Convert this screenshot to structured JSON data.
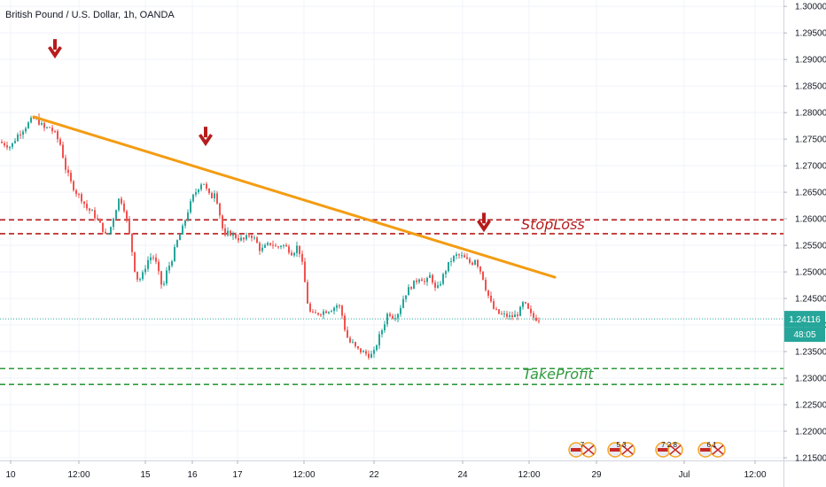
{
  "header": {
    "title": "British Pound / U.S. Dollar, 1h, OANDA"
  },
  "chart_data": {
    "type": "candlestick",
    "title": "British Pound / U.S. Dollar, 1h, OANDA",
    "ylim": [
      1.2145,
      1.3012
    ],
    "y_ticks": [
      "1.30000",
      "1.29500",
      "1.29000",
      "1.28500",
      "1.28000",
      "1.27500",
      "1.27000",
      "1.26500",
      "1.26000",
      "1.25500",
      "1.25000",
      "1.24500",
      "1.24000",
      "1.23500",
      "1.23000",
      "1.22500",
      "1.22000",
      "1.21500"
    ],
    "x_ticks": [
      "10",
      "12:00",
      "15",
      "16",
      "17",
      "12:00",
      "22",
      "24",
      "12:00",
      "29",
      "Jul",
      "12:00"
    ],
    "last_price": "1.24116",
    "countdown": "48:05",
    "price_path": [
      [
        0,
        1.2745
      ],
      [
        9,
        1.274
      ],
      [
        14,
        1.2735
      ],
      [
        22,
        1.2758
      ],
      [
        30,
        1.2772
      ],
      [
        37,
        1.2785
      ],
      [
        42,
        1.279
      ],
      [
        47,
        1.278
      ],
      [
        52,
        1.277
      ],
      [
        58,
        1.2772
      ],
      [
        64,
        1.276
      ],
      [
        70,
        1.274
      ],
      [
        76,
        1.2695
      ],
      [
        82,
        1.2668
      ],
      [
        88,
        1.265
      ],
      [
        94,
        1.2638
      ],
      [
        100,
        1.262
      ],
      [
        106,
        1.2612
      ],
      [
        112,
        1.2598
      ],
      [
        118,
        1.258
      ],
      [
        122,
        1.2565
      ],
      [
        127,
        1.2585
      ],
      [
        132,
        1.2615
      ],
      [
        137,
        1.2642
      ],
      [
        142,
        1.262
      ],
      [
        146,
        1.259
      ],
      [
        150,
        1.255
      ],
      [
        154,
        1.2505
      ],
      [
        158,
        1.2482
      ],
      [
        163,
        1.2495
      ],
      [
        168,
        1.252
      ],
      [
        174,
        1.2532
      ],
      [
        179,
        1.2512
      ],
      [
        183,
        1.248
      ],
      [
        186,
        1.247
      ],
      [
        190,
        1.25
      ],
      [
        196,
        1.2525
      ],
      [
        202,
        1.2558
      ],
      [
        208,
        1.2582
      ],
      [
        214,
        1.2615
      ],
      [
        220,
        1.2642
      ],
      [
        226,
        1.266
      ],
      [
        231,
        1.2672
      ],
      [
        236,
        1.265
      ],
      [
        240,
        1.2638
      ],
      [
        244,
        1.2652
      ],
      [
        248,
        1.2628
      ],
      [
        252,
        1.2588
      ],
      [
        256,
        1.2565
      ],
      [
        260,
        1.2575
      ],
      [
        266,
        1.2568
      ],
      [
        272,
        1.2562
      ],
      [
        278,
        1.256
      ],
      [
        284,
        1.2572
      ],
      [
        290,
        1.256
      ],
      [
        296,
        1.254
      ],
      [
        302,
        1.2548
      ],
      [
        308,
        1.2555
      ],
      [
        314,
        1.2545
      ],
      [
        320,
        1.2552
      ],
      [
        326,
        1.2545
      ],
      [
        332,
        1.2535
      ],
      [
        338,
        1.255
      ],
      [
        342,
        1.2525
      ],
      [
        346,
        1.248
      ],
      [
        350,
        1.243
      ],
      [
        354,
        1.2418
      ],
      [
        360,
        1.2422
      ],
      [
        366,
        1.2425
      ],
      [
        372,
        1.2428
      ],
      [
        378,
        1.2432
      ],
      [
        384,
        1.244
      ],
      [
        388,
        1.2418
      ],
      [
        392,
        1.2385
      ],
      [
        396,
        1.2368
      ],
      [
        400,
        1.2365
      ],
      [
        404,
        1.2355
      ],
      [
        410,
        1.235
      ],
      [
        416,
        1.2345
      ],
      [
        420,
        1.2342
      ],
      [
        424,
        1.2348
      ],
      [
        428,
        1.237
      ],
      [
        434,
        1.2395
      ],
      [
        440,
        1.2425
      ],
      [
        446,
        1.2415
      ],
      [
        452,
        1.2425
      ],
      [
        458,
        1.2455
      ],
      [
        464,
        1.247
      ],
      [
        470,
        1.248
      ],
      [
        476,
        1.2492
      ],
      [
        482,
        1.2478
      ],
      [
        488,
        1.2495
      ],
      [
        494,
        1.2462
      ],
      [
        500,
        1.2485
      ],
      [
        506,
        1.2508
      ],
      [
        512,
        1.2525
      ],
      [
        518,
        1.2532
      ],
      [
        524,
        1.2528
      ],
      [
        530,
        1.252
      ],
      [
        534,
        1.2515
      ],
      [
        538,
        1.2525
      ],
      [
        542,
        1.251
      ],
      [
        546,
        1.2495
      ],
      [
        550,
        1.247
      ],
      [
        554,
        1.245
      ],
      [
        558,
        1.2432
      ],
      [
        562,
        1.2425
      ],
      [
        566,
        1.242
      ],
      [
        572,
        1.2418
      ],
      [
        578,
        1.2415
      ],
      [
        584,
        1.2418
      ],
      [
        588,
        1.2425
      ],
      [
        592,
        1.244
      ],
      [
        596,
        1.2435
      ],
      [
        600,
        1.242
      ],
      [
        604,
        1.2414
      ],
      [
        608,
        1.2412
      ]
    ],
    "trendline": {
      "from": [
        38,
        1.2792
      ],
      "to": [
        626,
        1.249
      ],
      "color": "#f39c12"
    },
    "stop_loss": {
      "label": "StopLoss",
      "levels": [
        1.2598,
        1.2572
      ],
      "color": "#b71c1c"
    },
    "take_profit": {
      "label": "TakeProfit",
      "levels": [
        1.2318,
        1.2288
      ],
      "color": "#2e9a3c"
    },
    "markers": [
      {
        "x": 62,
        "price": 1.2915,
        "icon": "down-arrow-icon"
      },
      {
        "x": 232,
        "price": 1.275,
        "icon": "down-arrow-icon"
      },
      {
        "x": 546,
        "price": 1.2588,
        "icon": "down-arrow-icon"
      }
    ],
    "events": [
      {
        "x": 656,
        "label": "7"
      },
      {
        "x": 700,
        "label": "5 3"
      },
      {
        "x": 754,
        "label": "7 2 8"
      },
      {
        "x": 802,
        "label": "6 1"
      }
    ],
    "colors": {
      "up": "#26a69a",
      "down": "#ef5350",
      "price_line": "#26a69a",
      "grid": "#f0f3fa",
      "axis_text": "#131722"
    }
  }
}
